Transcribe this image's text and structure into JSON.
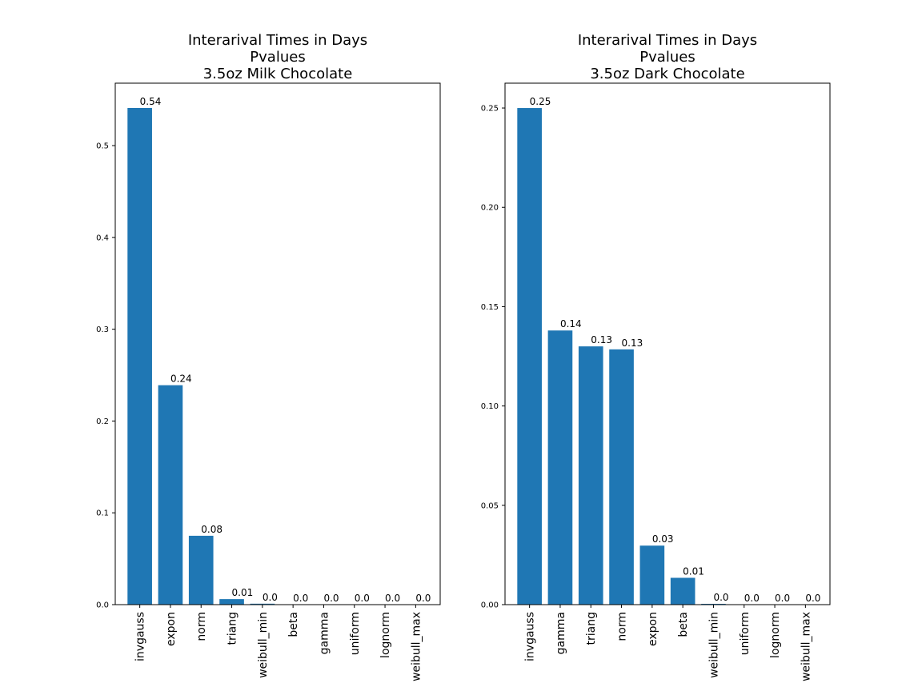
{
  "chart_data": [
    {
      "type": "bar",
      "title": [
        "Interarival Times in Days",
        "Pvalues",
        "3.5oz Milk Chocolate"
      ],
      "categories": [
        "invgauss",
        "expon",
        "norm",
        "triang",
        "weibull_min",
        "beta",
        "gamma",
        "uniform",
        "lognorm",
        "weibull_max"
      ],
      "values": [
        0.541,
        0.239,
        0.075,
        0.006,
        0.001,
        0.0,
        0.0,
        0.0,
        0.0,
        0.0
      ],
      "data_labels": [
        "0.54",
        "0.24",
        "0.08",
        "0.01",
        "0.0",
        "0.0",
        "0.0",
        "0.0",
        "0.0",
        "0.0"
      ],
      "yticks": [
        "0.0",
        "0.1",
        "0.2",
        "0.3",
        "0.4",
        "0.5"
      ],
      "ylim": [
        0,
        0.568
      ],
      "xlabel": "",
      "ylabel": "",
      "color": "#1f77b4",
      "grid": false
    },
    {
      "type": "bar",
      "title": [
        "Interarival Times in Days",
        "Pvalues",
        "3.5oz Dark Chocolate"
      ],
      "categories": [
        "invgauss",
        "gamma",
        "triang",
        "norm",
        "expon",
        "beta",
        "weibull_min",
        "uniform",
        "lognorm",
        "weibull_max"
      ],
      "values": [
        0.25,
        0.138,
        0.13,
        0.1285,
        0.0297,
        0.0135,
        0.0004,
        0.0,
        0.0,
        0.0
      ],
      "data_labels": [
        "0.25",
        "0.14",
        "0.13",
        "0.13",
        "0.03",
        "0.01",
        "0.0",
        "0.0",
        "0.0",
        "0.0"
      ],
      "yticks": [
        "0.00",
        "0.05",
        "0.10",
        "0.15",
        "0.20",
        "0.25"
      ],
      "ylim": [
        0,
        0.2625
      ],
      "xlabel": "",
      "ylabel": "",
      "color": "#1f77b4",
      "grid": false
    }
  ]
}
